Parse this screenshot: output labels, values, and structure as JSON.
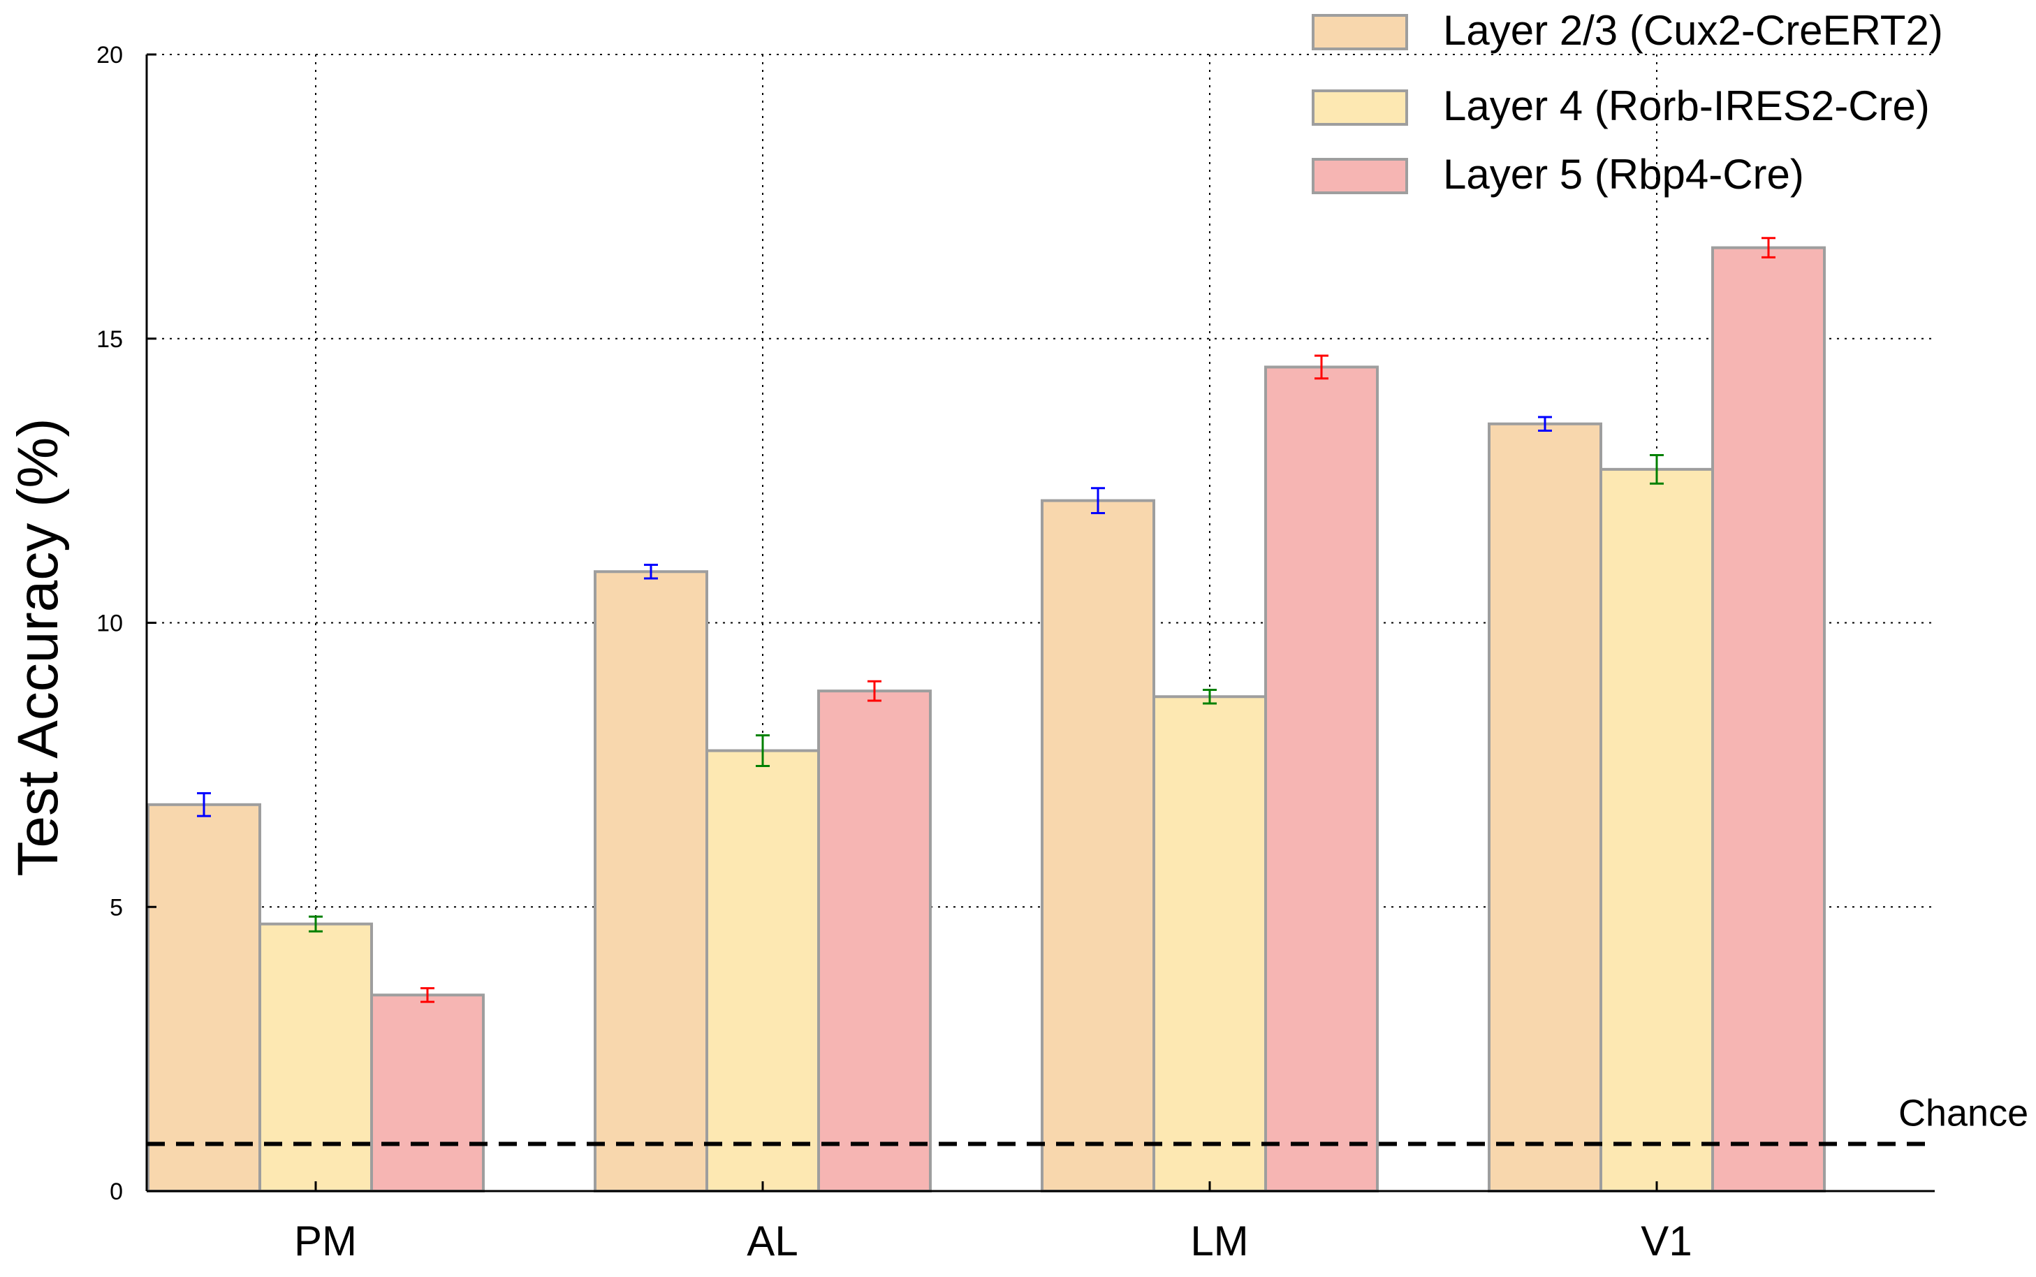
{
  "chart_data": {
    "type": "bar",
    "categories": [
      "PM",
      "AL",
      "LM",
      "V1"
    ],
    "series": [
      {
        "name": "Layer 2/3 (Cux2-CreERT2)",
        "color": "#f8d7ad",
        "error_color": "#0000ff",
        "values": [
          6.8,
          10.9,
          12.15,
          13.5
        ],
        "errors": [
          0.2,
          0.12,
          0.22,
          0.12
        ]
      },
      {
        "name": "Layer 4 (Rorb-IRES2-Cre)",
        "color": "#fde8b2",
        "error_color": "#008000",
        "values": [
          4.7,
          7.75,
          8.7,
          12.7
        ],
        "errors": [
          0.13,
          0.27,
          0.12,
          0.25
        ]
      },
      {
        "name": "Layer 5 (Rbp4-Cre)",
        "color": "#f6b5b3",
        "error_color": "#ff0000",
        "values": [
          3.45,
          8.8,
          14.5,
          16.6
        ],
        "errors": [
          0.12,
          0.17,
          0.2,
          0.17
        ]
      }
    ],
    "ylabel": "Test Accuracy (%)",
    "xlabel": "",
    "ylim": [
      0,
      20
    ],
    "yticks": [
      "0",
      "5",
      "10",
      "15",
      "20"
    ],
    "grid": true,
    "legend_position": "top-right",
    "reference_line": {
      "label": "Chance",
      "value": 0.83,
      "style": "dashed"
    }
  }
}
